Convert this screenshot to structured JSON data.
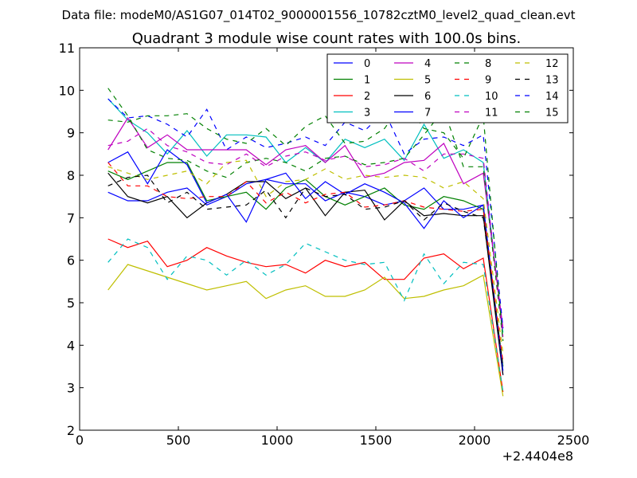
{
  "chart_data": {
    "type": "line",
    "suptitle": "Data file: modeM0/AS1G07_014T02_9000001556_10782cztM0_level2_quad_clean.evt",
    "title": "Quadrant 3 module wise count rates with 100.0s bins.",
    "xlabel": "",
    "ylabel": "",
    "x_offset_label": "+2.4404e8",
    "xlim": [
      0,
      2500
    ],
    "ylim": [
      2,
      11
    ],
    "xticks": [
      0,
      500,
      1000,
      1500,
      2000,
      2500
    ],
    "yticks": [
      2,
      3,
      4,
      5,
      6,
      7,
      8,
      9,
      10,
      11
    ],
    "x": [
      144,
      244,
      344,
      444,
      544,
      644,
      744,
      844,
      944,
      1044,
      1144,
      1244,
      1344,
      1444,
      1544,
      1644,
      1744,
      1844,
      1944,
      2044,
      2144
    ],
    "legend_position": "top-right",
    "legend_columns": 4,
    "series": [
      {
        "name": "0",
        "color": "#0000ff",
        "style": "solid",
        "values": [
          7.6,
          7.4,
          7.4,
          7.6,
          7.7,
          7.3,
          7.5,
          7.8,
          7.9,
          7.8,
          7.8,
          7.4,
          7.6,
          7.5,
          7.3,
          7.4,
          7.7,
          7.2,
          7.2,
          7.3,
          3.3
        ]
      },
      {
        "name": "1",
        "color": "#008000",
        "style": "solid",
        "values": [
          8.1,
          7.9,
          8.1,
          8.3,
          8.3,
          7.4,
          7.5,
          7.6,
          7.2,
          7.7,
          7.9,
          7.5,
          7.3,
          7.5,
          7.7,
          7.3,
          7.2,
          7.5,
          7.4,
          7.2,
          3.5
        ]
      },
      {
        "name": "2",
        "color": "#ff0000",
        "style": "solid",
        "values": [
          6.5,
          6.3,
          6.45,
          5.85,
          6.0,
          6.3,
          6.1,
          5.95,
          5.85,
          5.9,
          5.7,
          6.0,
          5.85,
          5.95,
          5.55,
          5.55,
          6.05,
          6.15,
          5.8,
          6.05,
          2.9
        ]
      },
      {
        "name": "3",
        "color": "#00bfbf",
        "style": "solid",
        "values": [
          9.8,
          9.3,
          9.0,
          8.5,
          9.05,
          8.45,
          8.95,
          8.95,
          8.9,
          8.3,
          8.65,
          8.3,
          8.85,
          8.65,
          8.85,
          8.35,
          9.2,
          8.4,
          8.6,
          8.3,
          4.3
        ]
      },
      {
        "name": "4",
        "color": "#bf00bf",
        "style": "solid",
        "values": [
          8.6,
          9.35,
          8.65,
          8.95,
          8.6,
          8.6,
          8.6,
          8.6,
          8.25,
          8.6,
          8.7,
          8.3,
          8.7,
          7.95,
          8.05,
          8.3,
          8.35,
          8.75,
          7.8,
          8.05,
          4.4
        ]
      },
      {
        "name": "5",
        "color": "#bfbf00",
        "style": "solid",
        "values": [
          5.3,
          5.9,
          5.75,
          5.6,
          5.45,
          5.3,
          5.4,
          5.5,
          5.1,
          5.3,
          5.4,
          5.15,
          5.15,
          5.3,
          5.6,
          5.1,
          5.15,
          5.3,
          5.4,
          5.65,
          2.8
        ]
      },
      {
        "name": "6",
        "color": "#000000",
        "style": "solid",
        "values": [
          8.05,
          7.5,
          7.35,
          7.5,
          7.0,
          7.35,
          7.55,
          7.85,
          7.85,
          7.45,
          7.7,
          7.05,
          7.6,
          7.65,
          6.95,
          7.4,
          7.05,
          7.1,
          7.05,
          7.05,
          3.3
        ]
      },
      {
        "name": "7",
        "color": "#0000ff",
        "style": "solid",
        "values": [
          8.3,
          8.55,
          7.8,
          8.6,
          8.25,
          7.35,
          7.55,
          6.9,
          7.9,
          8.05,
          7.45,
          7.85,
          7.55,
          7.8,
          7.6,
          7.35,
          6.75,
          7.4,
          7.0,
          7.3,
          3.4
        ]
      },
      {
        "name": "8",
        "color": "#008000",
        "style": "dashed",
        "values": [
          10.05,
          9.4,
          8.6,
          8.4,
          8.35,
          8.1,
          7.95,
          8.3,
          8.4,
          8.3,
          8.1,
          8.4,
          8.45,
          8.25,
          8.3,
          8.4,
          8.95,
          9.55,
          8.2,
          8.2,
          4.1
        ]
      },
      {
        "name": "9",
        "color": "#ff0000",
        "style": "dashed",
        "values": [
          8.3,
          7.75,
          7.75,
          7.5,
          7.45,
          7.5,
          7.5,
          7.85,
          7.35,
          7.6,
          7.35,
          7.55,
          7.6,
          7.25,
          7.3,
          7.4,
          7.25,
          7.2,
          7.15,
          7.2,
          3.6
        ]
      },
      {
        "name": "10",
        "color": "#00bfbf",
        "style": "dashed",
        "values": [
          5.95,
          6.5,
          6.3,
          5.55,
          6.1,
          6.0,
          5.65,
          6.0,
          5.65,
          5.9,
          6.4,
          6.2,
          6.0,
          5.9,
          5.95,
          5.05,
          6.15,
          5.45,
          5.95,
          5.9,
          2.9
        ]
      },
      {
        "name": "11",
        "color": "#bf00bf",
        "style": "dashed",
        "values": [
          8.7,
          8.8,
          9.1,
          8.7,
          8.55,
          8.3,
          8.25,
          8.5,
          8.2,
          8.45,
          8.55,
          8.35,
          8.45,
          8.2,
          8.25,
          8.4,
          8.1,
          8.5,
          8.5,
          8.4,
          4.2
        ]
      },
      {
        "name": "12",
        "color": "#bfbf00",
        "style": "dashed",
        "values": [
          8.2,
          8.05,
          7.9,
          8.0,
          8.1,
          7.8,
          8.3,
          8.35,
          7.5,
          7.85,
          7.9,
          8.15,
          7.9,
          8.0,
          7.95,
          8.0,
          7.95,
          7.7,
          7.85,
          7.45,
          3.8
        ]
      },
      {
        "name": "13",
        "color": "#000000",
        "style": "dashed",
        "values": [
          7.75,
          7.95,
          8.0,
          7.35,
          7.6,
          7.2,
          7.25,
          7.3,
          7.65,
          7.0,
          7.7,
          7.5,
          7.55,
          7.2,
          7.25,
          7.4,
          6.95,
          7.35,
          7.15,
          7.0,
          3.5
        ]
      },
      {
        "name": "14",
        "color": "#0000ff",
        "style": "dashed",
        "values": [
          9.8,
          9.35,
          9.4,
          9.2,
          8.9,
          9.55,
          8.6,
          8.9,
          8.65,
          8.75,
          8.9,
          8.7,
          9.25,
          9.05,
          9.5,
          8.5,
          8.85,
          8.9,
          8.7,
          8.95,
          4.4
        ]
      },
      {
        "name": "15",
        "color": "#008000",
        "style": "dashed",
        "values": [
          9.3,
          9.25,
          9.4,
          9.4,
          9.45,
          9.1,
          8.85,
          8.75,
          9.1,
          8.7,
          9.15,
          9.4,
          8.75,
          8.8,
          9.1,
          9.75,
          9.1,
          9.0,
          8.4,
          9.4,
          4.1
        ]
      }
    ]
  }
}
